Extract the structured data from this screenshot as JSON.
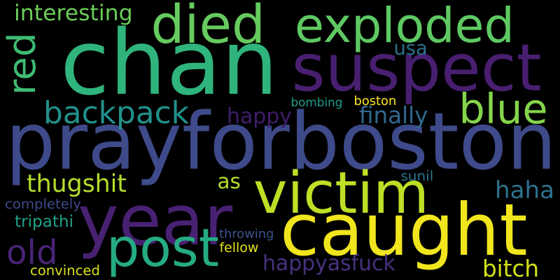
{
  "words": [
    {
      "text": "chan",
      "color": "#2fb47c"
    },
    {
      "text": "prayforboston",
      "color": "#3e4a89"
    },
    {
      "text": "suspect",
      "color": "#481f70"
    },
    {
      "text": "caught",
      "color": "#f1e51d"
    },
    {
      "text": "exploded",
      "color": "#5ec962"
    },
    {
      "text": "year",
      "color": "#482173"
    },
    {
      "text": "victim",
      "color": "#bddf26"
    },
    {
      "text": "post",
      "color": "#25ab82"
    },
    {
      "text": "died",
      "color": "#65cb5e"
    },
    {
      "text": "blue",
      "color": "#84d44b"
    },
    {
      "text": "red",
      "color": "#3fbc73"
    },
    {
      "text": "backpack",
      "color": "#21918c"
    },
    {
      "text": "happyasfuck",
      "color": "#46327e"
    },
    {
      "text": "old",
      "color": "#482475"
    },
    {
      "text": "thugshit",
      "color": "#b5de2b"
    },
    {
      "text": "interesting",
      "color": "#6ccd5a"
    },
    {
      "text": "happy",
      "color": "#3f1d69"
    },
    {
      "text": "finally",
      "color": "#31688e"
    },
    {
      "text": "haha",
      "color": "#2c728e"
    },
    {
      "text": "bitch",
      "color": "#d2e21b"
    },
    {
      "text": "as",
      "color": "#b5de2b"
    },
    {
      "text": "usa",
      "color": "#2d708e"
    },
    {
      "text": "bombing",
      "color": "#1f9e89"
    },
    {
      "text": "boston",
      "color": "#fde725"
    },
    {
      "text": "sunil",
      "color": "#2c728e"
    },
    {
      "text": "completely",
      "color": "#3e4989"
    },
    {
      "text": "tripathi",
      "color": "#1fa187"
    },
    {
      "text": "throwing",
      "color": "#3b528b"
    },
    {
      "text": "fellow",
      "color": "#e5e419"
    },
    {
      "text": "convinced",
      "color": "#d8e219"
    }
  ]
}
